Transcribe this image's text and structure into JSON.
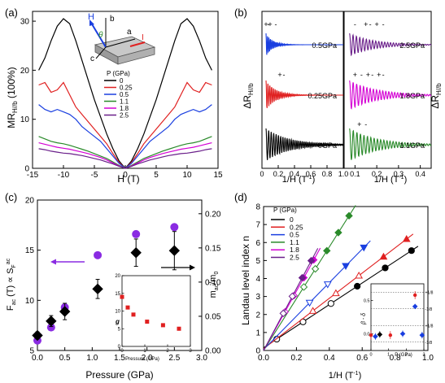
{
  "panels": {
    "a": {
      "letter": "(a)",
      "ylabel": "MR",
      "ylabel_sub": "H//b",
      "ylabel_unit": " (100%)",
      "xlabel": "H (T)",
      "inset_labels": {
        "H": "H",
        "b": "b",
        "theta": "θ",
        "a": "a",
        "c": "c",
        "I": "I"
      },
      "legend_title": "P (GPa)"
    },
    "b": {
      "letter": "(b)",
      "ylabel": "ΔR",
      "ylabel_sub": "H//b",
      "xlabel": "1/H (T",
      "xlabel_sup": "-1",
      "xlabel_close": ")"
    },
    "c": {
      "letter": "(c)",
      "ylabel_left": "F",
      "ylabel_left_sub": "ac",
      "ylabel_left_mid": " (T) ∝ S",
      "ylabel_left_sub2": "F",
      "ylabel_left_sup2": "ac",
      "ylabel_right": "m",
      "ylabel_right_sub": "ac",
      "ylabel_right_mid": "/m",
      "ylabel_right_sub2": "0",
      "xlabel": "Pressure (GPa)",
      "inset_xlabel": "Pressure (GPa)",
      "inset_ylabel": "g"
    },
    "d": {
      "letter": "(d)",
      "ylabel": "Landau level index n",
      "xlabel": "1/H (T",
      "xlabel_sup": "-1",
      "xlabel_close": ")",
      "legend_title": "P (GPa)",
      "inset_ylabel": "β - δ",
      "inset_xlabel": "P (GPa)",
      "inset_ref_labels": [
        "+1/8",
        "-1/8",
        "+1/8",
        "-1/8"
      ]
    }
  },
  "chart_data": [
    {
      "id": "a",
      "type": "line",
      "xlim": [
        -15,
        15
      ],
      "ylim": [
        0,
        32
      ],
      "xticks": [
        -15,
        -10,
        -5,
        0,
        5,
        10,
        15
      ],
      "yticks": [
        0,
        10,
        20,
        30
      ],
      "series": [
        {
          "name": "0",
          "color": "#000000",
          "x": [
            -14,
            -13,
            -12,
            -11,
            -10,
            -9,
            -8,
            -7,
            -6,
            -5,
            -4,
            -3,
            -2,
            -1,
            0,
            1,
            2,
            3,
            4,
            5,
            6,
            7,
            8,
            9,
            10,
            11,
            12,
            13,
            14
          ],
          "y": [
            20,
            22.5,
            26,
            29,
            30.5,
            29.5,
            26,
            22,
            18,
            14,
            10.5,
            7,
            4,
            1.5,
            0,
            1.5,
            4,
            7,
            10.5,
            14,
            18,
            22,
            26,
            29.5,
            30.5,
            29,
            26,
            22.5,
            20
          ]
        },
        {
          "name": "0.25",
          "color": "#e02020",
          "x": [
            -14,
            -13,
            -12,
            -11,
            -10,
            -9,
            -8,
            -7,
            -6,
            -5,
            -4,
            -3,
            -2,
            -1,
            0,
            1,
            2,
            3,
            4,
            5,
            6,
            7,
            8,
            9,
            10,
            11,
            12,
            13,
            14
          ],
          "y": [
            17,
            17.5,
            15.5,
            16,
            17.5,
            15,
            12.5,
            11,
            9.5,
            8,
            6.5,
            5,
            3,
            1.2,
            0,
            1.2,
            3,
            5,
            6.5,
            8,
            9.5,
            11,
            12.5,
            15,
            17.5,
            16,
            15.5,
            17.5,
            17
          ]
        },
        {
          "name": "0.5",
          "color": "#1a3fe0",
          "x": [
            -14,
            -13,
            -12,
            -11,
            -10,
            -9,
            -8,
            -7,
            -6,
            -5,
            -4,
            -3,
            -2,
            -1,
            0,
            1,
            2,
            3,
            4,
            5,
            6,
            7,
            8,
            9,
            10,
            11,
            12,
            13,
            14
          ],
          "y": [
            13,
            12,
            11.5,
            12,
            11.5,
            11,
            10,
            8.5,
            7.5,
            6.5,
            5.5,
            4,
            2.5,
            1,
            0,
            1,
            2.5,
            4,
            5.5,
            6.5,
            7.5,
            8.5,
            10,
            11,
            11.5,
            12,
            11.5,
            12,
            13
          ]
        },
        {
          "name": "1.1",
          "color": "#2a8a2a",
          "x": [
            -14,
            -13,
            -12,
            -11,
            -10,
            -9,
            -8,
            -7,
            -6,
            -5,
            -4,
            -3,
            -2,
            -1,
            0,
            1,
            2,
            3,
            4,
            5,
            6,
            7,
            8,
            9,
            10,
            11,
            12,
            13,
            14
          ],
          "y": [
            6.5,
            6,
            5.5,
            5.2,
            5,
            4.7,
            4.3,
            3.9,
            3.5,
            3,
            2.5,
            2,
            1.3,
            0.6,
            0,
            0.6,
            1.3,
            2,
            2.5,
            3,
            3.5,
            3.9,
            4.3,
            4.7,
            5,
            5.2,
            5.5,
            6,
            6.5
          ]
        },
        {
          "name": "1.8",
          "color": "#d400d4",
          "x": [
            -14,
            -13,
            -12,
            -11,
            -10,
            -9,
            -8,
            -7,
            -6,
            -5,
            -4,
            -3,
            -2,
            -1,
            0,
            1,
            2,
            3,
            4,
            5,
            6,
            7,
            8,
            9,
            10,
            11,
            12,
            13,
            14
          ],
          "y": [
            5.2,
            4.9,
            4.6,
            4.3,
            4.1,
            3.9,
            3.6,
            3.3,
            3,
            2.6,
            2.2,
            1.7,
            1.1,
            0.5,
            0,
            0.5,
            1.1,
            1.7,
            2.2,
            2.6,
            3,
            3.3,
            3.6,
            3.9,
            4.1,
            4.3,
            4.6,
            4.9,
            5.2
          ]
        },
        {
          "name": "2.5",
          "color": "#6a1f8a",
          "x": [
            -14,
            -13,
            -12,
            -11,
            -10,
            -9,
            -8,
            -7,
            -6,
            -5,
            -4,
            -3,
            -2,
            -1,
            0,
            1,
            2,
            3,
            4,
            5,
            6,
            7,
            8,
            9,
            10,
            11,
            12,
            13,
            14
          ],
          "y": [
            4,
            3.8,
            3.5,
            3.3,
            3.1,
            3,
            2.8,
            2.6,
            2.3,
            2,
            1.7,
            1.3,
            0.9,
            0.4,
            0,
            0.4,
            0.9,
            1.3,
            1.7,
            2,
            2.3,
            2.6,
            2.8,
            3,
            3.1,
            3.3,
            3.5,
            3.8,
            4
          ]
        }
      ]
    },
    {
      "id": "b",
      "type": "line",
      "subpanels": [
        {
          "xlim": [
            0,
            1.0
          ],
          "xticks": [
            0,
            0.2,
            0.4,
            0.6,
            0.8,
            1.0
          ],
          "xticklabels": [
            "0",
            "0.2",
            "0.4",
            "0.6",
            "0.8",
            "1.0"
          ],
          "series": [
            {
              "name": "0.5GPa",
              "color": "#1a3fe0",
              "offset": 2,
              "amp": 0.35,
              "decay": 12,
              "freq": 55
            },
            {
              "name": "0.25GPa",
              "color": "#e02020",
              "offset": 1,
              "amp": 0.45,
              "decay": 8,
              "freq": 42
            },
            {
              "name": "0GPa",
              "color": "#000000",
              "offset": 0,
              "amp": 0.5,
              "decay": 3.5,
              "freq": 30
            }
          ],
          "annotations": [
            {
              "text": "+",
              "x": 0.05,
              "row": 2
            },
            {
              "text": "-",
              "x": 0.08,
              "row": 2
            },
            {
              "text": "+",
              "x": 0.1,
              "row": 2
            },
            {
              "text": "-",
              "x": 0.17,
              "row": 2
            },
            {
              "text": "+",
              "x": 0.22,
              "row": 1
            },
            {
              "text": "-",
              "x": 0.27,
              "row": 1
            }
          ]
        },
        {
          "xlim": [
            0.05,
            0.45
          ],
          "xticks": [
            0.1,
            0.2,
            0.3,
            0.4
          ],
          "xticklabels": [
            "0.1",
            "0.2",
            "0.3",
            "0.4"
          ],
          "series": [
            {
              "name": "2.5GPa",
              "color": "#6a1f8a",
              "offset": 2,
              "amp": 0.35,
              "decay": 9,
              "freq": 62
            },
            {
              "name": "1.8GPa",
              "color": "#d400d4",
              "offset": 1,
              "amp": 0.45,
              "decay": 8,
              "freq": 60
            },
            {
              "name": "1.1GPa",
              "color": "#2a8a2a",
              "offset": 0,
              "amp": 0.5,
              "decay": 8,
              "freq": 58
            }
          ],
          "annotations": [
            {
              "text": "-",
              "x": 0.1,
              "row": 2
            },
            {
              "text": "+",
              "x": 0.15,
              "row": 2
            },
            {
              "text": "-",
              "x": 0.17,
              "row": 2
            },
            {
              "text": "+",
              "x": 0.2,
              "row": 2
            },
            {
              "text": "-",
              "x": 0.23,
              "row": 2
            },
            {
              "text": "+",
              "x": 0.1,
              "row": 1
            },
            {
              "text": "-",
              "x": 0.13,
              "row": 1
            },
            {
              "text": "+",
              "x": 0.16,
              "row": 1
            },
            {
              "text": "-",
              "x": 0.18,
              "row": 1
            },
            {
              "text": "+",
              "x": 0.21,
              "row": 1
            },
            {
              "text": "-",
              "x": 0.23,
              "row": 1
            },
            {
              "text": "+",
              "x": 0.12,
              "row": 0
            },
            {
              "text": "-",
              "x": 0.15,
              "row": 0
            }
          ]
        }
      ]
    },
    {
      "id": "c",
      "type": "scatter",
      "xlim": [
        0,
        3
      ],
      "ylim_left": [
        5,
        20
      ],
      "ylim_right": [
        0,
        0.22
      ],
      "xticks": [
        0,
        0.5,
        1,
        1.5,
        2,
        2.5,
        3
      ],
      "xticklabels": [
        "0.0",
        "0.5",
        "1.0",
        "1.5",
        "2.0",
        "2.5",
        "3.0"
      ],
      "yticks_left": [
        5,
        10,
        15,
        20
      ],
      "yticks_right": [
        0,
        0.05,
        0.1,
        0.15,
        0.2
      ],
      "yticklabels_right": [
        "0.00",
        "0.05",
        "0.10",
        "0.15",
        "0.20"
      ],
      "F_ac": {
        "x": [
          0.0,
          0.25,
          0.5,
          1.1,
          1.8,
          2.5
        ],
        "y": [
          6.0,
          7.3,
          9.3,
          14.5,
          16.6,
          17.3
        ],
        "color": "#8a2be2"
      },
      "m_ac": {
        "x": [
          0.0,
          0.25,
          0.5,
          1.1,
          1.8,
          2.5
        ],
        "y": [
          0.022,
          0.043,
          0.057,
          0.09,
          0.143,
          0.146
        ],
        "err": [
          0.005,
          0.008,
          0.012,
          0.014,
          0.02,
          0.028
        ],
        "color": "#000000"
      },
      "inset": {
        "xlim": [
          0,
          3
        ],
        "ylim": [
          0,
          20
        ],
        "xticks": [
          0,
          1,
          2,
          3
        ],
        "yticks": [
          0,
          5,
          10,
          15,
          20
        ],
        "x": [
          0.0,
          0.25,
          0.5,
          1.1,
          1.8,
          2.5
        ],
        "y": [
          14.0,
          11.0,
          9.0,
          7.0,
          6.0,
          5.0
        ],
        "color": "#e02020"
      }
    },
    {
      "id": "d",
      "type": "scatter",
      "xlim": [
        0,
        1.0
      ],
      "ylim": [
        0,
        8
      ],
      "xticks": [
        0,
        0.2,
        0.4,
        0.6,
        0.8,
        1.0
      ],
      "xticklabels": [
        "0.0",
        "0.2",
        "0.4",
        "0.6",
        "0.8",
        "1.0"
      ],
      "yticks": [
        0,
        1,
        2,
        3,
        4,
        5,
        6,
        7,
        8
      ],
      "series": [
        {
          "name": "0",
          "color": "#000000",
          "slope": 6.0,
          "intercept": 0.15,
          "x": [
            0.08,
            0.24,
            0.41,
            0.57,
            0.74,
            0.9
          ],
          "filled": [
            false,
            false,
            false,
            true,
            true,
            true
          ]
        },
        {
          "name": "0.25",
          "color": "#e02020",
          "slope": 7.0,
          "intercept": 0.1,
          "x": [
            0.3,
            0.44,
            0.58,
            0.73,
            0.87
          ],
          "filled": [
            false,
            false,
            false,
            true,
            true
          ]
        },
        {
          "name": "0.5",
          "color": "#1a3fe0",
          "slope": 9.3,
          "intercept": 0.05,
          "x": [
            0.28,
            0.39,
            0.5,
            0.61
          ],
          "filled": [
            false,
            false,
            true,
            true
          ]
        },
        {
          "name": "1.1",
          "color": "#2a8a2a",
          "slope": 14.4,
          "intercept": 0.0,
          "x": [
            0.245,
            0.315,
            0.385,
            0.455,
            0.52
          ],
          "filled": [
            false,
            false,
            true,
            true,
            true
          ]
        },
        {
          "name": "1.8",
          "color": "#d400d4",
          "slope": 16.5,
          "intercept": 0.0,
          "x": [
            0.13,
            0.185,
            0.245,
            0.305
          ],
          "filled": [
            false,
            false,
            true,
            true
          ]
        },
        {
          "name": "2.5",
          "color": "#6a1f8a",
          "slope": 17.2,
          "intercept": 0.0,
          "x": [
            0.12,
            0.175,
            0.235,
            0.29
          ],
          "filled": [
            false,
            false,
            true,
            true
          ]
        }
      ],
      "inset": {
        "xlim": [
          0,
          3
        ],
        "ylim": [
          -0.25,
          0.75
        ],
        "xticks": [
          0,
          1,
          2,
          3
        ],
        "yticks": [
          0.0,
          0.5
        ],
        "yticklabels": [
          "0.0",
          "0.5"
        ],
        "ref_lines": [
          0.625,
          0.375,
          0.125,
          -0.125
        ],
        "points": [
          {
            "x": 0.0,
            "y": -0.02,
            "err": 0.07,
            "color": "#e02020",
            "shape": "circle"
          },
          {
            "x": 0.25,
            "y": -0.04,
            "err": 0.05,
            "color": "#1a3fe0",
            "shape": "diamond"
          },
          {
            "x": 0.5,
            "y": -0.01,
            "err": 0.05,
            "color": "#000000",
            "shape": "diamond"
          },
          {
            "x": 1.1,
            "y": -0.02,
            "err": 0.06,
            "color": "#e02020",
            "shape": "circle"
          },
          {
            "x": 1.8,
            "y": 0.0,
            "err": 0.05,
            "color": "#1a3fe0",
            "shape": "diamond"
          },
          {
            "x": 2.5,
            "y": 0.58,
            "err": 0.06,
            "color": "#e02020",
            "shape": "circle"
          },
          {
            "x": 2.5,
            "y": 0.41,
            "err": 0.04,
            "color": "#1a3fe0",
            "shape": "diamond"
          },
          {
            "x": 2.9,
            "y": -0.02,
            "err": 0.05,
            "color": "#1a3fe0",
            "shape": "diamond"
          }
        ]
      }
    }
  ]
}
